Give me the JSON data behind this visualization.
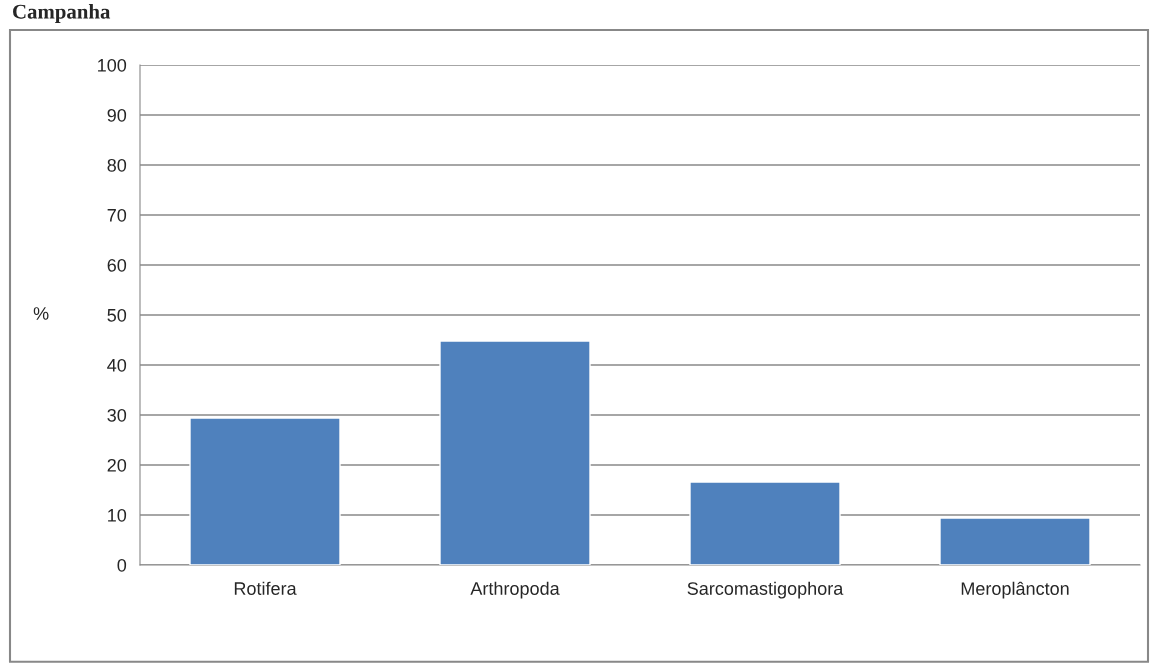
{
  "chart_data": {
    "type": "bar",
    "title": "Campanha",
    "ylabel": "%",
    "categories": [
      "Rotifera",
      "Arthropoda",
      "Sarcomastigophora",
      "Meroplâncton"
    ],
    "values": [
      29.4,
      44.8,
      16.6,
      9.4
    ],
    "color": "#4f81bd",
    "ylim": [
      0,
      100
    ],
    "yticks": [
      0,
      10,
      20,
      30,
      40,
      50,
      60,
      70,
      80,
      90,
      100
    ],
    "grid": "y",
    "legend": false
  }
}
